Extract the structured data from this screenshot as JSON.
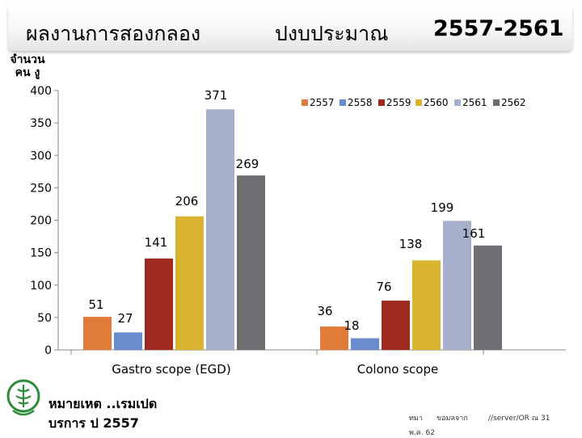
{
  "header": {
    "title_part1": "ผลงานการสองกลอง",
    "title_part2": "ปงบประมาณ",
    "title_part3": "2557-2561"
  },
  "chart_data": {
    "type": "bar",
    "ylabel": "จำนวนคน งู",
    "ylim": [
      0,
      400
    ],
    "yticks": [
      0,
      50,
      100,
      150,
      200,
      250,
      300,
      350,
      400
    ],
    "grid": false,
    "legend_position": "top-right",
    "categories": [
      "Gastro scope (EGD)",
      "Colono scope"
    ],
    "series": [
      {
        "name": "2557",
        "color": "#e07b39",
        "values": [
          51,
          36
        ]
      },
      {
        "name": "2558",
        "color": "#6a8ccc",
        "values": [
          27,
          18
        ]
      },
      {
        "name": "2559",
        "color": "#9e2a1e",
        "values": [
          141,
          76
        ]
      },
      {
        "name": "2560",
        "color": "#d9b431",
        "values": [
          206,
          138
        ]
      },
      {
        "name": "2561",
        "color": "#a6b0cc",
        "values": [
          371,
          199
        ]
      },
      {
        "name": "2562",
        "color": "#6e6e73",
        "values": [
          269,
          161
        ]
      }
    ]
  },
  "footnote": {
    "line1": "หมายเหต ..เรมเปด",
    "line2": "บรการ ป 2557",
    "source1": "ทมา",
    "source2": "ขอมลจาก",
    "source3": "//server/OR ณ 31",
    "source4": "พ.ค. 62"
  },
  "logo": {
    "icon": "ministry-of-public-health-emblem-icon",
    "color": "#2e8b3a"
  }
}
